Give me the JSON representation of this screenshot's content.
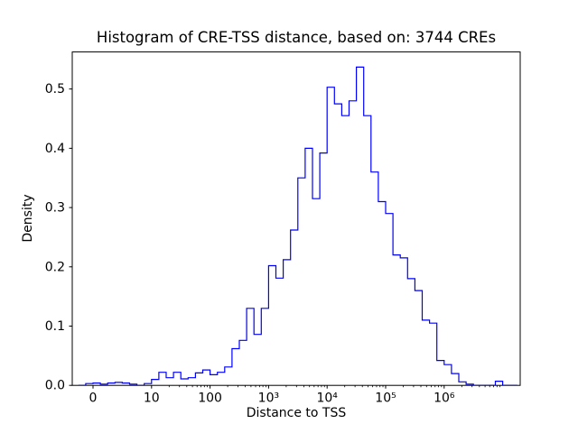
{
  "chart_data": {
    "type": "bar",
    "subtype": "step_histogram",
    "title": "Histogram of CRE-TSS distance, based on: 3744 CREs",
    "xlabel": "Distance to TSS",
    "ylabel": "Density",
    "n_cres": 3744,
    "x_scale": "symlog",
    "line_color": "#0000ff",
    "background_color": "#ffffff",
    "grid": false,
    "legend": null,
    "ylim": [
      0.0,
      0.5625
    ],
    "yticks": [
      0.0,
      0.1,
      0.2,
      0.3,
      0.4,
      0.5
    ],
    "xticks": [
      {
        "pos": 0,
        "label": "0"
      },
      {
        "pos": 1,
        "label": "10"
      },
      {
        "pos": 2,
        "label": "100"
      },
      {
        "pos": 3,
        "label": "10³"
      },
      {
        "pos": 4,
        "label": "10⁴"
      },
      {
        "pos": 5,
        "label": "10⁵"
      },
      {
        "pos": 6,
        "label": "10⁶"
      }
    ],
    "xlim_units": [
      -0.355,
      7.3
    ],
    "bin_start_unit": -0.25,
    "bin_width_unit": 0.125,
    "densities": [
      0.0,
      0.003,
      0.004,
      0.002,
      0.004,
      0.005,
      0.004,
      0.002,
      0.0,
      0.003,
      0.01,
      0.022,
      0.013,
      0.022,
      0.011,
      0.013,
      0.021,
      0.026,
      0.018,
      0.022,
      0.031,
      0.062,
      0.076,
      0.13,
      0.086,
      0.13,
      0.202,
      0.181,
      0.212,
      0.262,
      0.35,
      0.4,
      0.315,
      0.392,
      0.503,
      0.475,
      0.455,
      0.48,
      0.537,
      0.455,
      0.36,
      0.31,
      0.29,
      0.22,
      0.215,
      0.18,
      0.16,
      0.11,
      0.105,
      0.042,
      0.035,
      0.02,
      0.006,
      0.002,
      0.0,
      0.0,
      0.0,
      0.007,
      0.0,
      0.0
    ]
  }
}
